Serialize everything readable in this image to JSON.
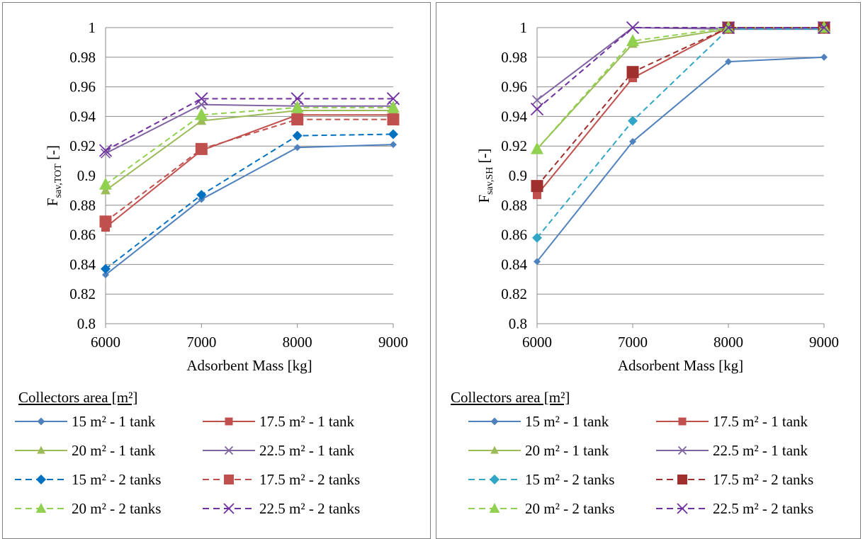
{
  "chart_data": [
    {
      "type": "line",
      "title": "",
      "xlabel": "Adsorbent Mass [kg]",
      "ylabel_main": "F",
      "ylabel_sub": "sav,TOT",
      "ylabel_unit": " [-]",
      "x": [
        6000,
        7000,
        8000,
        9000
      ],
      "xlim": [
        6000,
        9000
      ],
      "ylim": [
        0.8,
        1.0
      ],
      "yticks": [
        "0.8",
        "0.82",
        "0.84",
        "0.86",
        "0.88",
        "0.9",
        "0.92",
        "0.94",
        "0.96",
        "0.98",
        "1"
      ],
      "xticks": [
        "6000",
        "7000",
        "8000",
        "9000"
      ],
      "grid": "horizontal",
      "legend_title": "Collectors area [m²]",
      "legend_position": "bottom",
      "series": [
        {
          "name": "15 m² - 1 tank",
          "values": [
            0.833,
            0.884,
            0.919,
            0.921
          ],
          "color": "#4F81BD",
          "dash": "solid",
          "marker": "diamond"
        },
        {
          "name": "17.5 m² - 1 tank",
          "values": [
            0.865,
            0.917,
            0.941,
            0.941
          ],
          "color": "#C0504D",
          "dash": "solid",
          "marker": "square"
        },
        {
          "name": "20 m² - 1 tank",
          "values": [
            0.89,
            0.937,
            0.944,
            0.944
          ],
          "color": "#9BBB59",
          "dash": "solid",
          "marker": "triangle"
        },
        {
          "name": "22.5 m² - 1 tank",
          "values": [
            0.915,
            0.948,
            0.947,
            0.947
          ],
          "color": "#8064A2",
          "dash": "solid",
          "marker": "x"
        },
        {
          "name": "15 m² - 2 tanks",
          "values": [
            0.837,
            0.887,
            0.927,
            0.928
          ],
          "color": "#0070C0",
          "dash": "dash",
          "marker": "diamond"
        },
        {
          "name": "17.5 m² - 2 tanks",
          "values": [
            0.869,
            0.918,
            0.938,
            0.938
          ],
          "color": "#C0504D",
          "dash": "dash",
          "marker": "square"
        },
        {
          "name": "20 m² - 2 tanks",
          "values": [
            0.894,
            0.941,
            0.946,
            0.946
          ],
          "color": "#92D050",
          "dash": "dash",
          "marker": "triangle"
        },
        {
          "name": "22.5 m² - 2 tanks",
          "values": [
            0.917,
            0.952,
            0.952,
            0.952
          ],
          "color": "#7030A0",
          "dash": "dash",
          "marker": "x"
        }
      ]
    },
    {
      "type": "line",
      "title": "",
      "xlabel": "Adsorbent Mass [kg]",
      "ylabel_main": "F",
      "ylabel_sub": "sav,SH",
      "ylabel_unit": " [-]",
      "x": [
        6000,
        7000,
        8000,
        9000
      ],
      "xlim": [
        6000,
        9000
      ],
      "ylim": [
        0.8,
        1.0
      ],
      "yticks": [
        "0.8",
        "0.82",
        "0.84",
        "0.86",
        "0.88",
        "0.9",
        "0.92",
        "0.94",
        "0.96",
        "0.98",
        "1"
      ],
      "xticks": [
        "6000",
        "7000",
        "8000",
        "9000"
      ],
      "grid": "horizontal",
      "legend_title": "Collectors area [m²]",
      "legend_position": "bottom",
      "series": [
        {
          "name": "15 m² - 1 tank",
          "values": [
            0.842,
            0.923,
            0.977,
            0.98
          ],
          "color": "#4F81BD",
          "dash": "solid",
          "marker": "diamond"
        },
        {
          "name": "17.5 m² - 1 tank",
          "values": [
            0.887,
            0.966,
            1.0,
            1.0
          ],
          "color": "#C0504D",
          "dash": "solid",
          "marker": "square"
        },
        {
          "name": "20 m² - 1 tank",
          "values": [
            0.918,
            0.989,
            0.999,
            0.999
          ],
          "color": "#9BBB59",
          "dash": "solid",
          "marker": "triangle"
        },
        {
          "name": "22.5 m² - 1 tank",
          "values": [
            0.951,
            1.0,
            0.999,
            0.999
          ],
          "color": "#8064A2",
          "dash": "solid",
          "marker": "x"
        },
        {
          "name": "15 m² - 2 tanks",
          "values": [
            0.858,
            0.937,
            0.999,
            0.999
          ],
          "color": "#31A6C6",
          "dash": "dash",
          "marker": "diamond"
        },
        {
          "name": "17.5 m² - 2 tanks",
          "values": [
            0.893,
            0.97,
            1.0,
            1.0
          ],
          "color": "#A0302D",
          "dash": "dash",
          "marker": "square"
        },
        {
          "name": "20 m² - 2 tanks",
          "values": [
            0.918,
            0.991,
            1.0,
            1.0
          ],
          "color": "#92D050",
          "dash": "dash",
          "marker": "triangle"
        },
        {
          "name": "22.5 m² - 2 tanks",
          "values": [
            0.945,
            1.0,
            1.0,
            1.0
          ],
          "color": "#7030A0",
          "dash": "dash",
          "marker": "x"
        }
      ]
    }
  ]
}
